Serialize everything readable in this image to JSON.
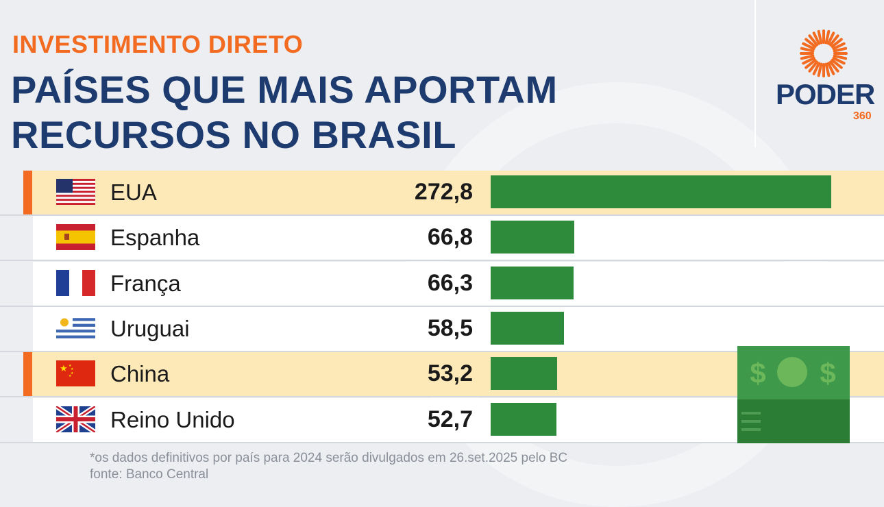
{
  "header": {
    "kicker": "INVESTIMENTO DIRETO",
    "title_line1": "PAÍSES QUE MAIS APORTAM",
    "title_line2": "RECURSOS NO BRASIL"
  },
  "logo": {
    "word": "PODER",
    "number": "360"
  },
  "chart_data": {
    "type": "bar",
    "orientation": "horizontal",
    "categories": [
      "EUA",
      "Espanha",
      "França",
      "Uruguai",
      "China",
      "Reino Unido"
    ],
    "values": [
      272.8,
      66.8,
      66.3,
      58.5,
      53.2,
      52.7
    ],
    "value_labels": [
      "272,8",
      "66,8",
      "66,3",
      "58,5",
      "53,2",
      "52,7"
    ],
    "highlighted": [
      "EUA",
      "China"
    ],
    "bar_color": "#2f8b3c",
    "highlight_color": "#fde9b8",
    "accent_color": "#f26b21",
    "xlim": [
      0,
      272.8
    ]
  },
  "footer": {
    "note": "*os dados definitivos por país para 2024 serão divulgados em 26.set.2025 pelo BC",
    "source": "fonte: Banco Central"
  }
}
